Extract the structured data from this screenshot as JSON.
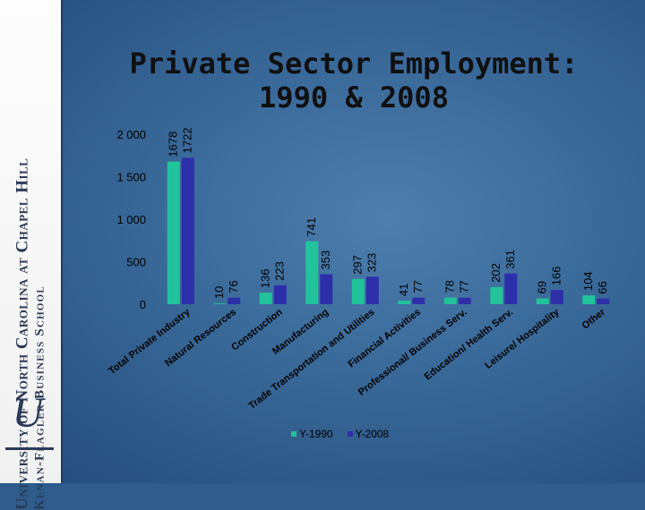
{
  "slide": {
    "sidebar_line1": "University of North Carolina at Chapel Hill",
    "sidebar_line2": "Kenan-Flagler Business School",
    "logo_letter": "U"
  },
  "chart_data": {
    "type": "bar",
    "title": "Private Sector Employment: 1990 & 2008",
    "title_lines": [
      "Private Sector Employment:",
      "1990 & 2008"
    ],
    "xlabel": "",
    "ylabel": "",
    "ylim": [
      0,
      2000
    ],
    "yticks": [
      0,
      500,
      1000,
      1500,
      2000
    ],
    "ytick_labels": [
      "0",
      "500",
      "1 000",
      "1 500",
      "2 000"
    ],
    "grid": false,
    "legend_position": "bottom",
    "categories": [
      "Total Private Industry",
      "Natural Resources",
      "Construction",
      "Manufacturing",
      "Trade Transportation and Utilities",
      "Financial Activities",
      "Professional/ Business Serv.",
      "Education/ Health Serv.",
      "Leisure/ Hospitality",
      "Other"
    ],
    "series": [
      {
        "name": "Y-1990",
        "color": "#22c39a",
        "values": [
          1678,
          10,
          136,
          741,
          297,
          41,
          78,
          202,
          69,
          104
        ]
      },
      {
        "name": "Y-2008",
        "color": "#2d2fa8",
        "values": [
          1722,
          76,
          223,
          353,
          323,
          77,
          77,
          361,
          166,
          66
        ]
      }
    ]
  }
}
